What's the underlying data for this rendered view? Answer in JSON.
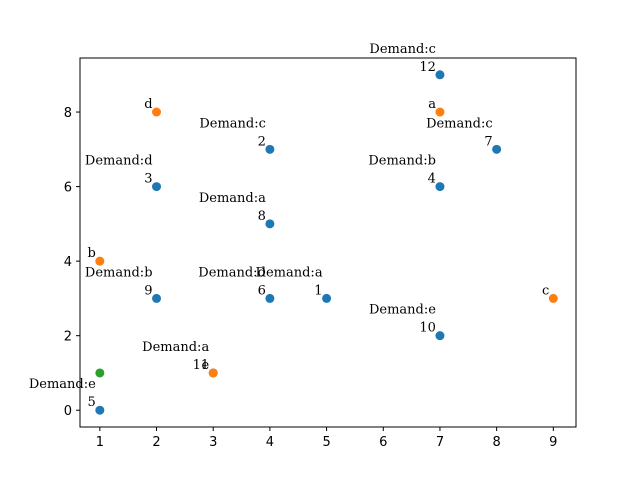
{
  "chart_data": {
    "type": "scatter",
    "title": "",
    "xlabel": "",
    "ylabel": "",
    "xlim": [
      0.65,
      9.4
    ],
    "ylim": [
      -0.45,
      9.45
    ],
    "xticks": [
      1,
      2,
      3,
      4,
      5,
      6,
      7,
      8,
      9
    ],
    "yticks": [
      0,
      2,
      4,
      6,
      8
    ],
    "grid": false,
    "colors": {
      "blue": "#1f77b4",
      "orange": "#ff7f0e",
      "green": "#2ca02c"
    },
    "series": [
      {
        "color": "#1f77b4",
        "points": [
          {
            "x": 5,
            "y": 3,
            "label": "1",
            "demand": "Demand:a"
          },
          {
            "x": 4,
            "y": 7,
            "label": "2",
            "demand": "Demand:c"
          },
          {
            "x": 2,
            "y": 6,
            "label": "3",
            "demand": "Demand:d"
          },
          {
            "x": 7,
            "y": 6,
            "label": "4",
            "demand": "Demand:b"
          },
          {
            "x": 1,
            "y": 0,
            "label": "5",
            "demand": "Demand:e"
          },
          {
            "x": 4,
            "y": 3,
            "label": "6",
            "demand": "Demand:d"
          },
          {
            "x": 8,
            "y": 7,
            "label": "7",
            "demand": "Demand:c"
          },
          {
            "x": 4,
            "y": 5,
            "label": "8",
            "demand": "Demand:a"
          },
          {
            "x": 2,
            "y": 3,
            "label": "9",
            "demand": "Demand:b"
          },
          {
            "x": 7,
            "y": 2,
            "label": "10",
            "demand": "Demand:e"
          },
          {
            "x": 3,
            "y": 1,
            "label": "11",
            "demand": "Demand:a"
          },
          {
            "x": 7,
            "y": 9,
            "label": "12",
            "demand": "Demand:c"
          }
        ]
      },
      {
        "color": "#ff7f0e",
        "points": [
          {
            "x": 7,
            "y": 8,
            "label": "a"
          },
          {
            "x": 1,
            "y": 4,
            "label": "b"
          },
          {
            "x": 9,
            "y": 3,
            "label": "c"
          },
          {
            "x": 2,
            "y": 8,
            "label": "d"
          },
          {
            "x": 3,
            "y": 1,
            "label": "e"
          }
        ]
      },
      {
        "color": "#2ca02c",
        "points": [
          {
            "x": 1,
            "y": 1,
            "label": ""
          }
        ]
      }
    ]
  }
}
